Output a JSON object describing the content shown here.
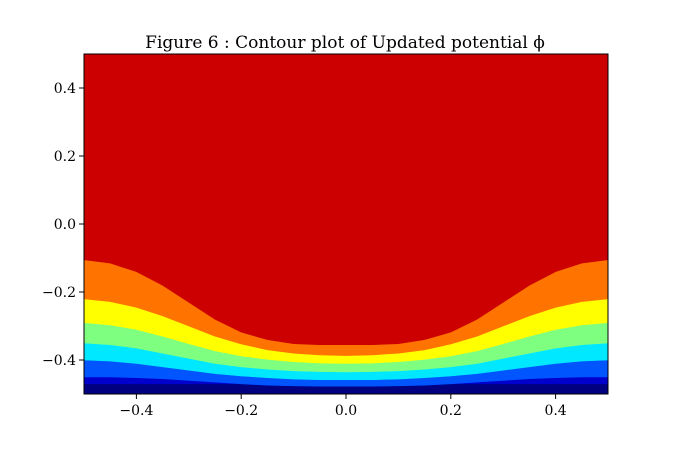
{
  "chart_data": {
    "type": "contour",
    "title": "Figure 6 : Contour plot of Updated potential ϕ",
    "xlabel": "",
    "ylabel": "",
    "xlim": [
      -0.5,
      0.5
    ],
    "ylim": [
      -0.5,
      0.5
    ],
    "grid": false,
    "legend": "none",
    "x_ticks": [
      -0.4,
      -0.2,
      0.0,
      0.2,
      0.4
    ],
    "x_tick_labels": [
      "−0.4",
      "−0.2",
      "0.0",
      "0.2",
      "0.4"
    ],
    "y_ticks": [
      0.4,
      0.2,
      0.0,
      -0.2,
      -0.4
    ],
    "y_tick_labels": [
      "0.4",
      "0.2",
      "0.0",
      "−0.2",
      "−0.4"
    ],
    "boundary_x": [
      -0.5,
      -0.45,
      -0.4,
      -0.35,
      -0.3,
      -0.25,
      -0.2,
      -0.15,
      -0.1,
      -0.05,
      0.0,
      0.05,
      0.1,
      0.15,
      0.2,
      0.25,
      0.3,
      0.35,
      0.4,
      0.45,
      0.5
    ],
    "bands": [
      {
        "name": "band-1",
        "color": "#000080",
        "upper": [
          -0.47,
          -0.47,
          -0.47,
          -0.47,
          -0.47,
          -0.47,
          -0.47,
          -0.47,
          -0.47,
          -0.47,
          -0.47,
          -0.47,
          -0.47,
          -0.47,
          -0.47,
          -0.47,
          -0.47,
          -0.47,
          -0.47,
          -0.47,
          -0.47
        ]
      },
      {
        "name": "band-2",
        "color": "#0000cd",
        "upper": [
          -0.45,
          -0.45,
          -0.452,
          -0.455,
          -0.46,
          -0.465,
          -0.47,
          -0.474,
          -0.476,
          -0.477,
          -0.477,
          -0.477,
          -0.476,
          -0.474,
          -0.47,
          -0.465,
          -0.46,
          -0.455,
          -0.452,
          -0.45,
          -0.45
        ]
      },
      {
        "name": "band-3",
        "color": "#0055ff",
        "upper": [
          -0.4,
          -0.403,
          -0.41,
          -0.42,
          -0.43,
          -0.44,
          -0.447,
          -0.452,
          -0.456,
          -0.458,
          -0.458,
          -0.458,
          -0.456,
          -0.452,
          -0.447,
          -0.44,
          -0.43,
          -0.42,
          -0.41,
          -0.403,
          -0.4
        ]
      },
      {
        "name": "band-4",
        "color": "#00e8ff",
        "upper": [
          -0.35,
          -0.355,
          -0.365,
          -0.38,
          -0.395,
          -0.41,
          -0.42,
          -0.427,
          -0.432,
          -0.434,
          -0.435,
          -0.434,
          -0.432,
          -0.427,
          -0.42,
          -0.41,
          -0.395,
          -0.38,
          -0.365,
          -0.355,
          -0.35
        ]
      },
      {
        "name": "band-5",
        "color": "#7fff7f",
        "upper": [
          -0.29,
          -0.297,
          -0.31,
          -0.33,
          -0.352,
          -0.373,
          -0.388,
          -0.398,
          -0.405,
          -0.409,
          -0.41,
          -0.409,
          -0.405,
          -0.398,
          -0.388,
          -0.373,
          -0.352,
          -0.33,
          -0.31,
          -0.297,
          -0.29
        ]
      },
      {
        "name": "band-6",
        "color": "#ffff00",
        "upper": [
          -0.22,
          -0.228,
          -0.245,
          -0.27,
          -0.3,
          -0.33,
          -0.353,
          -0.37,
          -0.38,
          -0.385,
          -0.387,
          -0.385,
          -0.38,
          -0.37,
          -0.353,
          -0.33,
          -0.3,
          -0.27,
          -0.245,
          -0.228,
          -0.22
        ]
      },
      {
        "name": "band-7",
        "color": "#ff7300",
        "upper": [
          -0.105,
          -0.115,
          -0.14,
          -0.18,
          -0.23,
          -0.28,
          -0.318,
          -0.34,
          -0.352,
          -0.355,
          -0.355,
          -0.355,
          -0.352,
          -0.34,
          -0.318,
          -0.28,
          -0.23,
          -0.18,
          -0.14,
          -0.115,
          -0.105
        ]
      },
      {
        "name": "band-8",
        "color": "#cc0000",
        "upper": [
          0.5,
          0.5,
          0.5,
          0.5,
          0.5,
          0.5,
          0.5,
          0.5,
          0.5,
          0.5,
          0.5,
          0.5,
          0.5,
          0.5,
          0.5,
          0.5,
          0.5,
          0.5,
          0.5,
          0.5,
          0.5
        ]
      }
    ]
  }
}
